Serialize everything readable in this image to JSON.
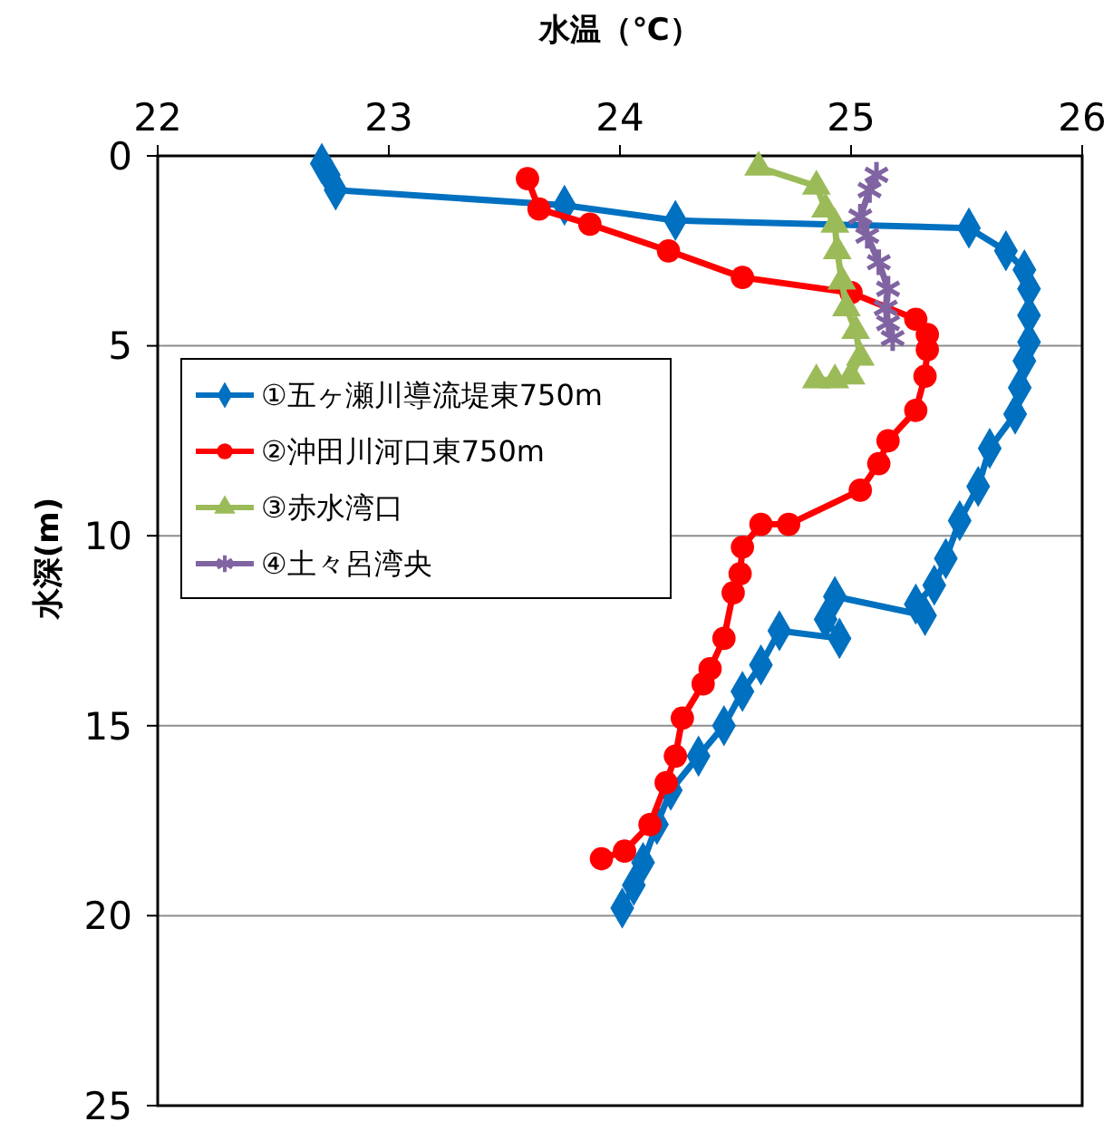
{
  "chart_data": {
    "type": "line",
    "xlabel": "水温（℃）",
    "ylabel": "水深(m)",
    "xlim": [
      22,
      26
    ],
    "xticks": [
      22,
      23,
      24,
      25,
      26
    ],
    "ylim": [
      25,
      0
    ],
    "yticks": [
      0,
      5,
      10,
      15,
      20,
      25
    ],
    "grid": "y",
    "legend": "left",
    "line_style": "solid",
    "series": [
      {
        "name": "①五ヶ瀬川導流堤東750m",
        "color": "#0070c0",
        "marker": "diamond",
        "x": [
          22.71,
          22.74,
          22.77,
          23.76,
          24.24,
          25.51,
          25.67,
          25.75,
          25.77,
          25.77,
          25.77,
          25.75,
          25.73,
          25.71,
          25.6,
          25.55,
          25.47,
          25.41,
          25.36,
          25.28,
          25.32,
          24.93,
          24.89,
          24.95,
          24.69,
          24.61,
          24.53,
          24.45,
          24.34,
          24.22,
          24.16,
          24.1,
          24.06,
          24.01
        ],
        "values": [
          0.2,
          0.5,
          0.9,
          1.3,
          1.7,
          1.9,
          2.5,
          3,
          3.5,
          4.2,
          4.9,
          5.4,
          6.1,
          6.8,
          7.7,
          8.7,
          9.6,
          10.6,
          11.3,
          11.8,
          12.1,
          11.6,
          12.2,
          12.7,
          12.5,
          13.4,
          14.1,
          15,
          15.8,
          16.7,
          17.6,
          18.6,
          19.2,
          19.8
        ]
      },
      {
        "name": "②沖田川河口東750m",
        "color": "#ff0000",
        "marker": "circle",
        "x": [
          23.6,
          23.65,
          23.87,
          24.21,
          24.53,
          25.0,
          25.28,
          25.33,
          25.33,
          25.32,
          25.28,
          25.16,
          25.12,
          25.04,
          24.73,
          24.61,
          24.53,
          24.52,
          24.49,
          24.45,
          24.39,
          24.36,
          24.27,
          24.24,
          24.2,
          24.13,
          24.02,
          23.92
        ],
        "values": [
          0.6,
          1.4,
          1.8,
          2.5,
          3.2,
          3.6,
          4.3,
          4.7,
          5.1,
          5.8,
          6.7,
          7.5,
          8.1,
          8.8,
          9.7,
          9.7,
          10.3,
          11,
          11.5,
          12.7,
          13.5,
          13.9,
          14.8,
          15.8,
          16.5,
          17.6,
          18.3,
          18.5
        ]
      },
      {
        "name": "③赤水湾口",
        "color": "#9bbb59",
        "marker": "triangle",
        "x": [
          24.6,
          24.85,
          24.89,
          24.93,
          24.94,
          24.96,
          24.98,
          25.02,
          25.04,
          25.0,
          24.93,
          24.85
        ],
        "values": [
          0.3,
          0.8,
          1.4,
          1.8,
          2.5,
          3.3,
          4,
          4.6,
          5.3,
          5.8,
          5.9,
          5.9
        ]
      },
      {
        "name": "④土々呂湾央",
        "color": "#8064a2",
        "marker": "cross",
        "x": [
          25.11,
          25.08,
          25.04,
          25.07,
          25.12,
          25.16,
          25.15,
          25.16,
          25.18
        ],
        "values": [
          0.5,
          0.9,
          1.6,
          2.1,
          2.8,
          3.5,
          4,
          4.4,
          4.8
        ]
      }
    ]
  }
}
